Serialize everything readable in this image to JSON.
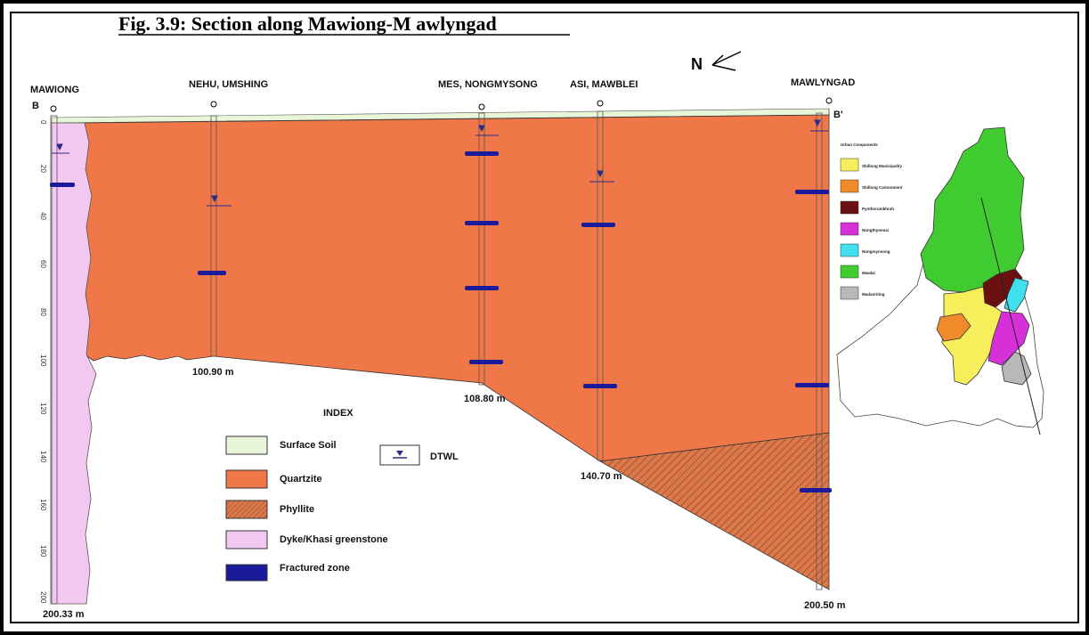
{
  "figure": {
    "title": "Fig. 3.9: Section along Mawiong-M awlyngad",
    "north_label": "N",
    "section_start": "B",
    "section_end": "B'"
  },
  "colors": {
    "surface_soil": "#e8f5d8",
    "quartzite": "#f07848",
    "phyllite": "#d9784a",
    "dyke": "#f3c8f0",
    "fractured": "#1a1a9a",
    "dtwl": "#2a2a8a"
  },
  "wells": [
    {
      "name": "MAWIONG",
      "depth_label": "200.33 m",
      "depth": 200.33
    },
    {
      "name": "NEHU, UMSHING",
      "depth_label": "100.90 m",
      "depth": 100.9
    },
    {
      "name": "MES, NONGMYSONG",
      "depth_label": "108.80 m",
      "depth": 108.8
    },
    {
      "name": "ASI, MAWBLEI",
      "depth_label": "140.70 m",
      "depth": 140.7
    },
    {
      "name": "MAWLYNGAD",
      "depth_label": "200.50 m",
      "depth": 200.5
    }
  ],
  "depth_axis": {
    "ticks": [
      "0",
      "20",
      "40",
      "60",
      "80",
      "100",
      "120",
      "140",
      "160",
      "180",
      "200"
    ]
  },
  "legend": {
    "title": "INDEX",
    "items": [
      {
        "label": "Surface Soil",
        "key": "surface_soil"
      },
      {
        "label": "Quartzite",
        "key": "quartzite"
      },
      {
        "label": "Phyllite",
        "key": "phyllite"
      },
      {
        "label": "Dyke/Khasi greenstone",
        "key": "dyke"
      },
      {
        "label": "Fractured zone",
        "key": "fractured"
      }
    ],
    "dtwl_label": "DTWL"
  },
  "inset_map": {
    "legend_title": "Urban Components",
    "items": [
      {
        "label": "Shillong Municipality",
        "color": "#f6ee5a"
      },
      {
        "label": "Shillong Cantonment",
        "color": "#f08a2a"
      },
      {
        "label": "Pynthorumkhrah",
        "color": "#6a1010"
      },
      {
        "label": "Nongthymmai",
        "color": "#d830d8"
      },
      {
        "label": "Nongmynsong",
        "color": "#40e0f0"
      },
      {
        "label": "Mawlai",
        "color": "#40cc30"
      },
      {
        "label": "Madanriting",
        "color": "#b8b8b8"
      }
    ]
  }
}
